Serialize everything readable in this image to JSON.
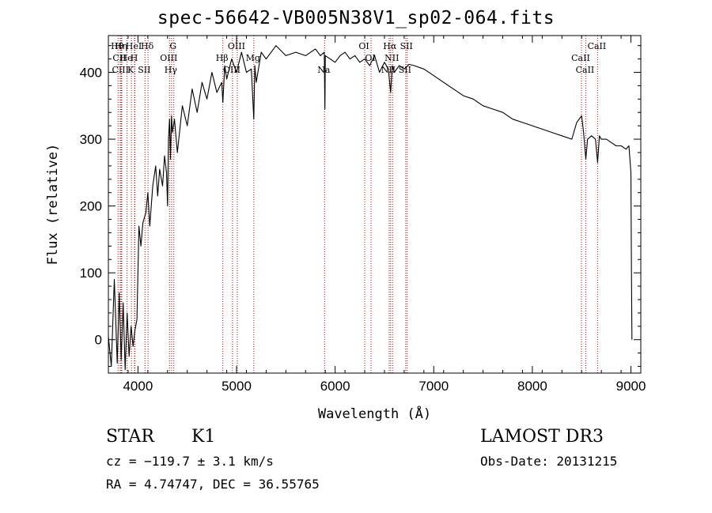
{
  "figure": {
    "title": "spec-56642-VB005N38V1_sp02-064.fits",
    "object_class": "STAR",
    "subclass": "K1",
    "survey": "LAMOST DR3",
    "cz_text": "cz = −119.7 ± 3.1 km/s",
    "obs_date_text": "Obs-Date: 20131215",
    "radec_text": "RA =   4.74747, DEC =  36.55765"
  },
  "colors": {
    "spectrum": "#000000",
    "line_marker": "#c00000",
    "axis": "#000000"
  },
  "chart_data": {
    "type": "line",
    "title": "spec-56642-VB005N38V1_sp02-064.fits",
    "xlabel": "Wavelength (Å)",
    "ylabel": "Flux (relative)",
    "xlim": [
      3700,
      9100
    ],
    "ylim": [
      -50,
      455
    ],
    "xticks": [
      4000,
      5000,
      6000,
      7000,
      8000,
      9000
    ],
    "yticks": [
      0,
      100,
      200,
      300,
      400
    ],
    "series": [
      {
        "name": "flux",
        "x": [
          3700,
          3730,
          3760,
          3790,
          3810,
          3830,
          3850,
          3870,
          3890,
          3910,
          3930,
          3950,
          3970,
          3990,
          4010,
          4030,
          4050,
          4080,
          4100,
          4120,
          4150,
          4180,
          4200,
          4220,
          4250,
          4270,
          4290,
          4300,
          4310,
          4320,
          4330,
          4340,
          4350,
          4370,
          4400,
          4450,
          4500,
          4550,
          4600,
          4650,
          4700,
          4750,
          4800,
          4850,
          4861,
          4880,
          4900,
          4950,
          5000,
          5050,
          5100,
          5150,
          5175,
          5185,
          5200,
          5250,
          5300,
          5400,
          5500,
          5600,
          5700,
          5800,
          5850,
          5890,
          5896,
          5900,
          5950,
          6000,
          6050,
          6100,
          6150,
          6200,
          6250,
          6300,
          6350,
          6400,
          6450,
          6500,
          6540,
          6563,
          6580,
          6600,
          6650,
          6700,
          6750,
          6800,
          6900,
          7000,
          7100,
          7200,
          7300,
          7400,
          7500,
          7600,
          7700,
          7800,
          7900,
          8000,
          8100,
          8200,
          8300,
          8400,
          8450,
          8500,
          8520,
          8542,
          8560,
          8600,
          8640,
          8662,
          8680,
          8700,
          8750,
          8800,
          8850,
          8900,
          8950,
          8980,
          9000,
          9005,
          9010
        ],
        "values": [
          5,
          -40,
          90,
          -35,
          70,
          -30,
          55,
          -45,
          40,
          -25,
          20,
          -10,
          15,
          30,
          170,
          140,
          175,
          190,
          220,
          170,
          230,
          260,
          215,
          255,
          230,
          275,
          250,
          200,
          300,
          330,
          270,
          335,
          310,
          330,
          280,
          350,
          320,
          375,
          340,
          385,
          360,
          400,
          370,
          385,
          355,
          410,
          390,
          420,
          400,
          430,
          400,
          405,
          330,
          410,
          385,
          430,
          420,
          440,
          425,
          430,
          425,
          435,
          425,
          430,
          345,
          425,
          420,
          415,
          425,
          430,
          420,
          425,
          415,
          420,
          410,
          425,
          400,
          415,
          405,
          370,
          410,
          400,
          410,
          405,
          412,
          410,
          405,
          395,
          385,
          375,
          365,
          360,
          350,
          345,
          340,
          330,
          325,
          320,
          315,
          310,
          305,
          300,
          325,
          335,
          310,
          270,
          300,
          305,
          300,
          265,
          305,
          300,
          300,
          295,
          290,
          290,
          285,
          290,
          250,
          100,
          0
        ]
      }
    ],
    "line_markers": [
      {
        "label": "Hθ",
        "wavelength": 3798
      },
      {
        "label": "CII",
        "wavelength": 3820
      },
      {
        "label": "CIII",
        "wavelength": 3830
      },
      {
        "label": "Hη",
        "wavelength": 3836
      },
      {
        "label": "He",
        "wavelength": 3889
      },
      {
        "label": "K",
        "wavelength": 3934
      },
      {
        "label": "HeI",
        "wavelength": 3965
      },
      {
        "label": "H",
        "wavelength": 3969
      },
      {
        "label": "SII",
        "wavelength": 4072
      },
      {
        "label": "Hδ",
        "wavelength": 4102
      },
      {
        "label": "OIII",
        "wavelength": 4320
      },
      {
        "label": "Hγ",
        "wavelength": 4341
      },
      {
        "label": "G",
        "wavelength": 4364
      },
      {
        "label": "Hβ",
        "wavelength": 4861
      },
      {
        "label": "OIII",
        "wavelength": 4959
      },
      {
        "label": "OIII",
        "wavelength": 5007
      },
      {
        "label": "Mg",
        "wavelength": 5175
      },
      {
        "label": "Na",
        "wavelength": 5893
      },
      {
        "label": "OI",
        "wavelength": 6300
      },
      {
        "label": "OI",
        "wavelength": 6364
      },
      {
        "label": "NII",
        "wavelength": 6548
      },
      {
        "label": "Hα",
        "wavelength": 6563
      },
      {
        "label": "NII",
        "wavelength": 6583
      },
      {
        "label": "SII",
        "wavelength": 6716
      },
      {
        "label": "SII",
        "wavelength": 6731
      },
      {
        "label": "CaII",
        "wavelength": 8498
      },
      {
        "label": "CaII",
        "wavelength": 8542
      },
      {
        "label": "CaII",
        "wavelength": 8662
      }
    ]
  }
}
